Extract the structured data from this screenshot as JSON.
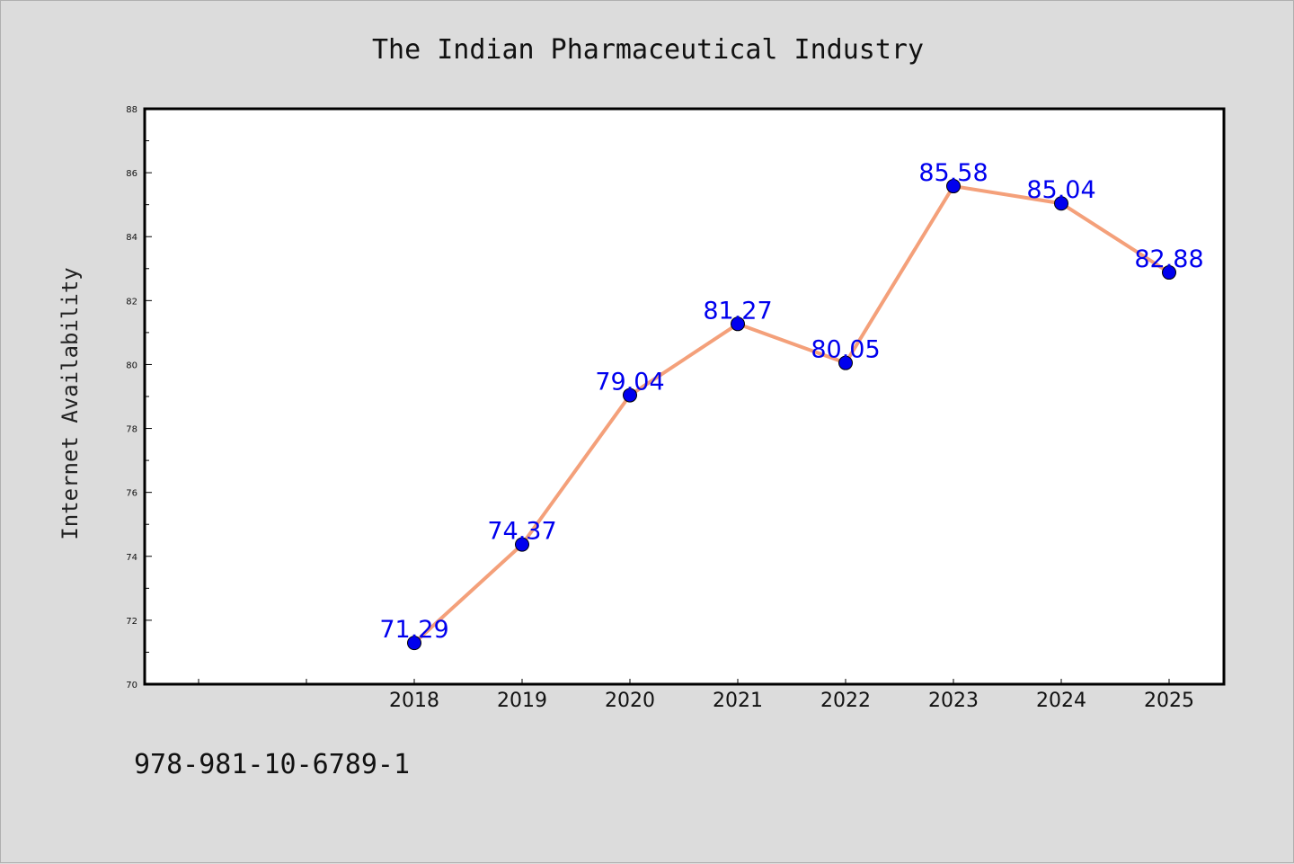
{
  "chart_data": {
    "type": "line",
    "title": "The Indian Pharmaceutical Industry",
    "xlabel": "",
    "ylabel": "Internet Availability",
    "categories": [
      "2018",
      "2019",
      "2020",
      "2021",
      "2022",
      "2023",
      "2024",
      "2025"
    ],
    "series": [
      {
        "values": [
          71.29,
          74.37,
          79.04,
          81.27,
          80.05,
          85.58,
          85.04,
          82.88
        ],
        "labels": [
          "71.29",
          "74.37",
          "79.04",
          "81.27",
          "80.05",
          "85.58",
          "85.04",
          "82.88"
        ],
        "line_color": "#f4a07a",
        "marker_color": "#0000ee",
        "label_color": "#0000ee"
      }
    ],
    "ylim": [
      70,
      88
    ],
    "yticks": [
      "70",
      "72",
      "74",
      "76",
      "78",
      "80",
      "82",
      "84",
      "86",
      "88"
    ],
    "grid": false,
    "legend": "none"
  },
  "footer": {
    "code": "978-981-10-6789-1"
  },
  "colors": {
    "background": "#dcdcdc",
    "plot_background": "#ffffff",
    "axis": "#000000"
  }
}
